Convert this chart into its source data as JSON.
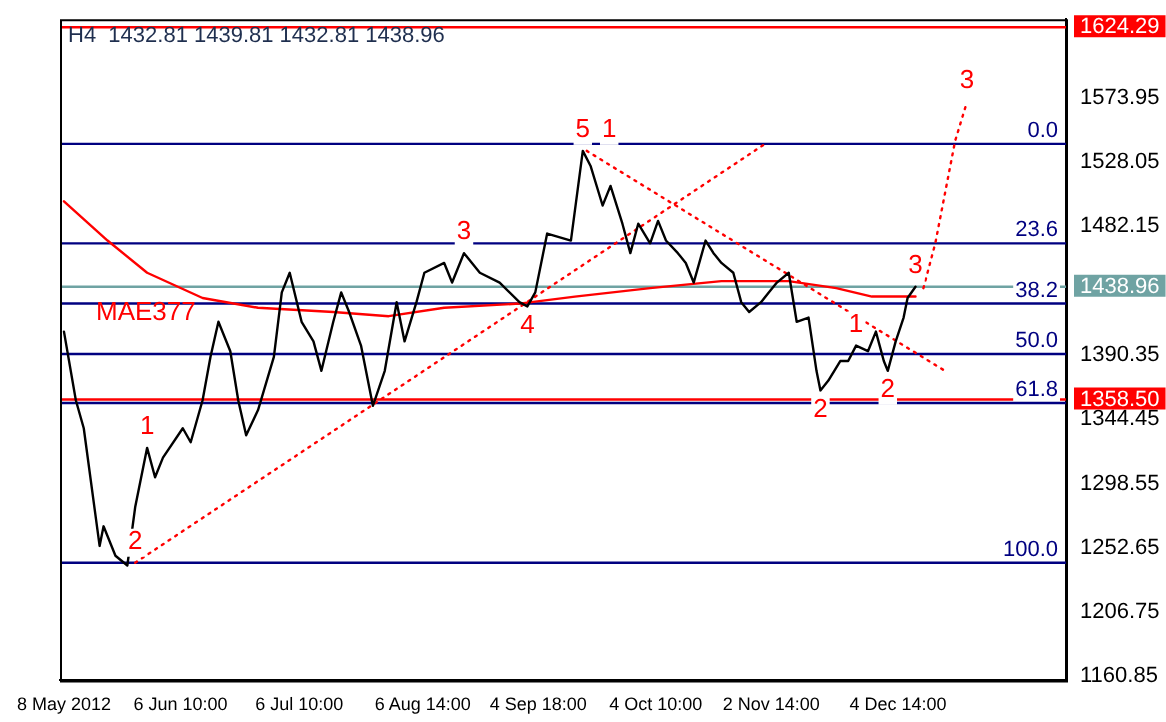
{
  "chart_data": {
    "type": "line",
    "title": "H4  1432.81 1439.81 1432.81 1438.96",
    "xlim": [
      "2012-05-07",
      "2013-01-16"
    ],
    "xticks": [
      {
        "value": "2012-05-08T00:00",
        "label": "8 May 2012"
      },
      {
        "value": "2012-06-06T10:00",
        "label": "6 Jun 10:00"
      },
      {
        "value": "2012-07-06T10:00",
        "label": "6 Jul 10:00"
      },
      {
        "value": "2012-08-06T14:00",
        "label": "6 Aug 14:00"
      },
      {
        "value": "2012-09-04T18:00",
        "label": "4 Sep 18:00"
      },
      {
        "value": "2012-10-04T10:00",
        "label": "4 Oct 10:00"
      },
      {
        "value": "2012-11-02T14:00",
        "label": "2 Nov 14:00"
      },
      {
        "value": "2012-12-04T14:00",
        "label": "4 Dec 14:00"
      }
    ],
    "ylim": [
      1158,
      1630
    ],
    "yticks": [
      1160.85,
      1206.75,
      1252.65,
      1298.55,
      1344.45,
      1390.35,
      1482.15,
      1528.05,
      1573.95,
      {
        "value": 1358.5,
        "label": "1358.50"
      },
      {
        "value": 1438.96,
        "label": "1438.96"
      },
      {
        "value": 1624.29,
        "label": "1624.29"
      }
    ],
    "grid": false,
    "legend": false,
    "marker": "none",
    "series": [
      {
        "color": "#000000",
        "line_style": "solid",
        "x": [
          "2012-05-08",
          "2012-05-11",
          "2012-05-13",
          "2012-05-17",
          "2012-05-18",
          "2012-05-21",
          "2012-05-24",
          "2012-05-26",
          "2012-05-29",
          "2012-05-31",
          "2012-06-02",
          "2012-06-07",
          "2012-06-09",
          "2012-06-12",
          "2012-06-14",
          "2012-06-16",
          "2012-06-19",
          "2012-06-21",
          "2012-06-23",
          "2012-06-26",
          "2012-06-30",
          "2012-07-02",
          "2012-07-04",
          "2012-07-07",
          "2012-07-10",
          "2012-07-12",
          "2012-07-15",
          "2012-07-17",
          "2012-07-19",
          "2012-07-22",
          "2012-07-25",
          "2012-07-28",
          "2012-07-31",
          "2012-08-02",
          "2012-08-05",
          "2012-08-07",
          "2012-08-12",
          "2012-08-14",
          "2012-08-17",
          "2012-08-21",
          "2012-08-26",
          "2012-08-31",
          "2012-09-02",
          "2012-09-04",
          "2012-09-07",
          "2012-09-13",
          "2012-09-16",
          "2012-09-18",
          "2012-09-21",
          "2012-09-23",
          "2012-09-26",
          "2012-09-28",
          "2012-09-30",
          "2012-10-03",
          "2012-10-05",
          "2012-10-07",
          "2012-10-10",
          "2012-10-12",
          "2012-10-14",
          "2012-10-17",
          "2012-10-19",
          "2012-10-21",
          "2012-10-24",
          "2012-10-26",
          "2012-10-28",
          "2012-10-31",
          "2012-11-02",
          "2012-11-04",
          "2012-11-07",
          "2012-11-09",
          "2012-11-12",
          "2012-11-14",
          "2012-11-15",
          "2012-11-17",
          "2012-11-20",
          "2012-11-22",
          "2012-11-24",
          "2012-11-27",
          "2012-11-29",
          "2012-12-01",
          "2012-12-02",
          "2012-12-04",
          "2012-12-06",
          "2012-12-07",
          "2012-12-09"
        ],
        "values": [
          1407,
          1358,
          1338,
          1254,
          1268,
          1247,
          1240,
          1282,
          1324,
          1303,
          1317,
          1338,
          1328,
          1358,
          1389,
          1414,
          1393,
          1358,
          1333,
          1351,
          1389,
          1435,
          1449,
          1414,
          1400,
          1379,
          1414,
          1435,
          1421,
          1397,
          1354,
          1379,
          1428,
          1400,
          1428,
          1449,
          1456,
          1442,
          1463,
          1449,
          1442,
          1428,
          1425,
          1435,
          1477,
          1472,
          1536,
          1525,
          1497,
          1511,
          1484,
          1463,
          1484,
          1470,
          1486,
          1472,
          1463,
          1456,
          1442,
          1472,
          1463,
          1456,
          1449,
          1428,
          1421,
          1428,
          1435,
          1442,
          1449,
          1414,
          1417,
          1379,
          1365,
          1372,
          1386,
          1386,
          1397,
          1393,
          1407,
          1386,
          1379,
          1400,
          1417,
          1431,
          1439
        ]
      },
      {
        "name": "MAE377",
        "color": "#ff0000",
        "line_style": "solid",
        "x": [
          "2012-05-08",
          "2012-05-19",
          "2012-05-29",
          "2012-06-12",
          "2012-06-26",
          "2012-07-15",
          "2012-07-29",
          "2012-08-12",
          "2012-08-31",
          "2012-09-14",
          "2012-10-03",
          "2012-10-21",
          "2012-11-07",
          "2012-11-19",
          "2012-11-28",
          "2012-12-09"
        ],
        "values": [
          1500,
          1472,
          1449,
          1431,
          1424,
          1421,
          1418,
          1424,
          1427,
          1432,
          1438,
          1443,
          1443,
          1438,
          1432,
          1432
        ]
      },
      {
        "color": "#ff0000",
        "line_style": "dotted",
        "x": [
          "2012-05-26",
          "2012-11-01"
        ],
        "values": [
          1242,
          1541
        ]
      },
      {
        "color": "#ff0000",
        "line_style": "dotted",
        "x": [
          "2012-09-17",
          "2012-12-17"
        ],
        "values": [
          1536,
          1378
        ]
      },
      {
        "color": "#ff0000",
        "line_style": "dotted",
        "x": [
          "2012-12-11",
          "2012-12-14",
          "2012-12-19",
          "2012-12-22"
        ],
        "values": [
          1438,
          1470,
          1543,
          1571
        ]
      }
    ],
    "ref_lines": [
      {
        "axis": "y",
        "value": 1541,
        "color": "#000080"
      },
      {
        "axis": "y",
        "value": 1470,
        "color": "#000080"
      },
      {
        "axis": "y",
        "value": 1427,
        "color": "#000080"
      },
      {
        "axis": "y",
        "value": 1391,
        "color": "#000080"
      },
      {
        "axis": "y",
        "value": 1356,
        "color": "#000080"
      },
      {
        "axis": "y",
        "value": 1242,
        "color": "#000080"
      },
      {
        "axis": "y",
        "value": 1624.29,
        "color": "#ff0000"
      },
      {
        "axis": "y",
        "value": 1438.96,
        "color": "#6fa3a3"
      },
      {
        "axis": "y",
        "value": 1358.5,
        "color": "#ff0000"
      }
    ],
    "annotations": [
      {
        "text": "0.0",
        "x": "2013-01-13",
        "y": 1541
      },
      {
        "text": "23.6",
        "x": "2013-01-13",
        "y": 1470
      },
      {
        "text": "38.2",
        "x": "2013-01-13",
        "y": 1427
      },
      {
        "text": "50.0",
        "x": "2013-01-13",
        "y": 1391
      },
      {
        "text": "61.8",
        "x": "2013-01-13",
        "y": 1356
      },
      {
        "text": "100.0",
        "x": "2013-01-13",
        "y": 1242
      },
      {
        "text": "1",
        "x": "2012-05-29",
        "y": 1324
      },
      {
        "text": "2",
        "x": "2012-05-26",
        "y": 1242
      },
      {
        "text": "3",
        "x": "2012-08-17",
        "y": 1463
      },
      {
        "text": "4",
        "x": "2012-09-02",
        "y": 1425
      },
      {
        "text": "5",
        "x": "2012-09-16",
        "y": 1536
      },
      {
        "text": "1",
        "x": "2012-09-17",
        "y": 1536
      },
      {
        "text": "2",
        "x": "2012-11-15",
        "y": 1365
      },
      {
        "text": "1",
        "x": "2012-11-24",
        "y": 1397
      },
      {
        "text": "2",
        "x": "2012-12-02",
        "y": 1379
      },
      {
        "text": "3",
        "x": "2012-12-09",
        "y": 1439
      },
      {
        "text": "3",
        "x": "2012-12-22",
        "y": 1571
      }
    ]
  }
}
